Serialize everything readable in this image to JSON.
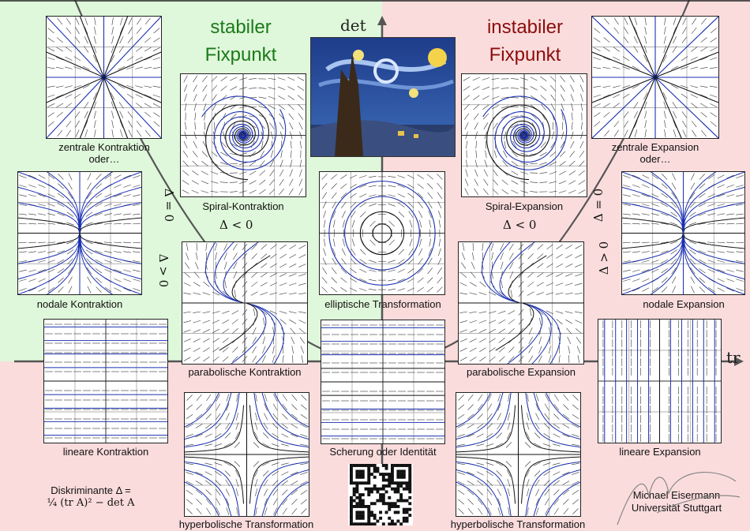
{
  "axes": {
    "det_label": "det",
    "tr_label": "tr"
  },
  "titles": {
    "stable_line1": "stabiler",
    "stable_line2": "Fixpunkt",
    "unstable_line1": "instabiler",
    "unstable_line2": "Fixpunkt"
  },
  "colors": {
    "stable_bg": "#dff7da",
    "unstable_bg": "#fbdcdc",
    "stable_title": "#1a7a1a",
    "unstable_title": "#8b0d0d",
    "trajectory": "#1a2fb0"
  },
  "parabola_labels": {
    "left_eq": "Δ = 0",
    "left_gt": "Δ > 0",
    "right_eq": "Δ = 0",
    "right_gt": "Δ > 0",
    "left_lt": "Δ < 0",
    "right_lt": "Δ < 0"
  },
  "panels": {
    "central_contraction": "zentrale Kontraktion",
    "central_contraction_2": "oder…",
    "spiral_contraction": "Spiral-Kontraktion",
    "nodal_contraction": "nodale Kontraktion",
    "parabolic_contraction": "parabolische Kontraktion",
    "linear_contraction": "lineare Kontraktion",
    "elliptic": "elliptische Transformation",
    "shear": "Scherung oder Identität",
    "hyperbolic_left": "hyperbolische Transformation",
    "hyperbolic_right": "hyperbolische Transformation",
    "central_expansion": "zentrale Expansion",
    "central_expansion_2": "oder…",
    "spiral_expansion": "Spiral-Expansion",
    "nodal_expansion": "nodale Expansion",
    "parabolic_expansion": "parabolische Expansion",
    "linear_expansion": "lineare Expansion"
  },
  "discriminant": {
    "line1": "Diskriminante Δ =",
    "line2": "¼ (tr A)² − det A"
  },
  "author": {
    "name": "Michael Eisermann",
    "affiliation": "Universität Stuttgart"
  },
  "images": {
    "painting": "starry-night-painting",
    "qr": "qr-code"
  }
}
